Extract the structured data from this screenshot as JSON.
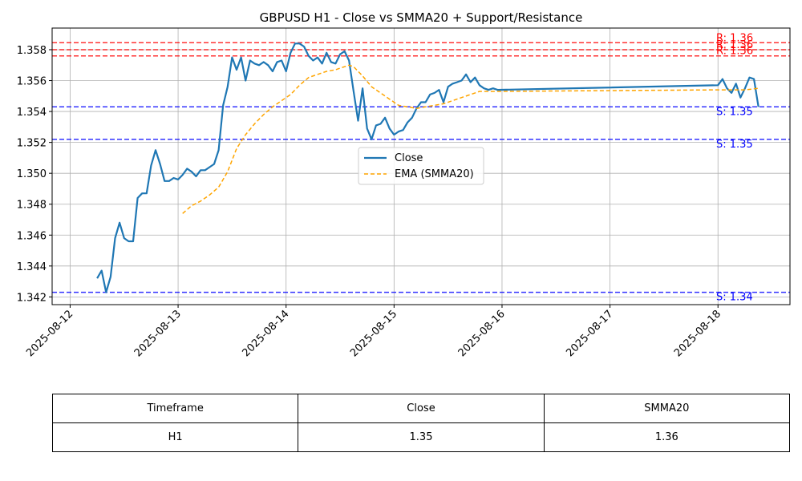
{
  "chart_data": {
    "type": "line",
    "title": "GBPUSD H1 - Close vs SMMA20 + Support/Resistance",
    "xlabel": "",
    "ylabel": "",
    "x_ticks": [
      "2025-08-12",
      "2025-08-13",
      "2025-08-14",
      "2025-08-15",
      "2025-08-16",
      "2025-08-17",
      "2025-08-18"
    ],
    "y_ticks": [
      "1.342",
      "1.344",
      "1.346",
      "1.348",
      "1.350",
      "1.352",
      "1.354",
      "1.356",
      "1.358"
    ],
    "ylim": [
      1.3415,
      1.3594
    ],
    "xlim": [
      "2025-08-11 20:00",
      "2025-08-18 16:00"
    ],
    "grid": true,
    "legend_position": "center-right",
    "series": [
      {
        "name": "Close",
        "color": "#1f77b4",
        "style": "solid",
        "points": [
          [
            "2025-08-12 06:00",
            1.3432
          ],
          [
            "2025-08-12 07:00",
            1.3437
          ],
          [
            "2025-08-12 08:00",
            1.3423
          ],
          [
            "2025-08-12 09:00",
            1.3433
          ],
          [
            "2025-08-12 10:00",
            1.3458
          ],
          [
            "2025-08-12 11:00",
            1.3468
          ],
          [
            "2025-08-12 12:00",
            1.3458
          ],
          [
            "2025-08-12 13:00",
            1.3456
          ],
          [
            "2025-08-12 14:00",
            1.3456
          ],
          [
            "2025-08-12 15:00",
            1.3484
          ],
          [
            "2025-08-12 16:00",
            1.3487
          ],
          [
            "2025-08-12 17:00",
            1.3487
          ],
          [
            "2025-08-12 18:00",
            1.3505
          ],
          [
            "2025-08-12 19:00",
            1.3515
          ],
          [
            "2025-08-12 20:00",
            1.3506
          ],
          [
            "2025-08-12 21:00",
            1.3495
          ],
          [
            "2025-08-12 22:00",
            1.3495
          ],
          [
            "2025-08-12 23:00",
            1.3497
          ],
          [
            "2025-08-13 00:00",
            1.3496
          ],
          [
            "2025-08-13 01:00",
            1.3499
          ],
          [
            "2025-08-13 02:00",
            1.3503
          ],
          [
            "2025-08-13 03:00",
            1.3501
          ],
          [
            "2025-08-13 04:00",
            1.3498
          ],
          [
            "2025-08-13 05:00",
            1.3502
          ],
          [
            "2025-08-13 06:00",
            1.3502
          ],
          [
            "2025-08-13 07:00",
            1.3504
          ],
          [
            "2025-08-13 08:00",
            1.3506
          ],
          [
            "2025-08-13 09:00",
            1.3515
          ],
          [
            "2025-08-13 10:00",
            1.3544
          ],
          [
            "2025-08-13 11:00",
            1.3556
          ],
          [
            "2025-08-13 12:00",
            1.3575
          ],
          [
            "2025-08-13 13:00",
            1.3567
          ],
          [
            "2025-08-13 14:00",
            1.3575
          ],
          [
            "2025-08-13 15:00",
            1.356
          ],
          [
            "2025-08-13 16:00",
            1.3573
          ],
          [
            "2025-08-13 17:00",
            1.3571
          ],
          [
            "2025-08-13 18:00",
            1.357
          ],
          [
            "2025-08-13 19:00",
            1.3572
          ],
          [
            "2025-08-13 20:00",
            1.357
          ],
          [
            "2025-08-13 21:00",
            1.3566
          ],
          [
            "2025-08-13 22:00",
            1.3572
          ],
          [
            "2025-08-13 23:00",
            1.3573
          ],
          [
            "2025-08-14 00:00",
            1.3566
          ],
          [
            "2025-08-14 01:00",
            1.3578
          ],
          [
            "2025-08-14 02:00",
            1.3584
          ],
          [
            "2025-08-14 03:00",
            1.3584
          ],
          [
            "2025-08-14 04:00",
            1.3582
          ],
          [
            "2025-08-14 05:00",
            1.3576
          ],
          [
            "2025-08-14 06:00",
            1.3573
          ],
          [
            "2025-08-14 07:00",
            1.3575
          ],
          [
            "2025-08-14 08:00",
            1.3571
          ],
          [
            "2025-08-14 09:00",
            1.3578
          ],
          [
            "2025-08-14 10:00",
            1.3572
          ],
          [
            "2025-08-14 11:00",
            1.3571
          ],
          [
            "2025-08-14 12:00",
            1.3577
          ],
          [
            "2025-08-14 13:00",
            1.3579
          ],
          [
            "2025-08-14 14:00",
            1.3573
          ],
          [
            "2025-08-14 15:00",
            1.3553
          ],
          [
            "2025-08-14 16:00",
            1.3534
          ],
          [
            "2025-08-14 17:00",
            1.3555
          ],
          [
            "2025-08-14 18:00",
            1.3529
          ],
          [
            "2025-08-14 19:00",
            1.3522
          ],
          [
            "2025-08-14 20:00",
            1.3531
          ],
          [
            "2025-08-14 21:00",
            1.3532
          ],
          [
            "2025-08-14 22:00",
            1.3536
          ],
          [
            "2025-08-14 23:00",
            1.3529
          ],
          [
            "2025-08-15 00:00",
            1.3525
          ],
          [
            "2025-08-15 01:00",
            1.3527
          ],
          [
            "2025-08-15 02:00",
            1.3528
          ],
          [
            "2025-08-15 03:00",
            1.3533
          ],
          [
            "2025-08-15 04:00",
            1.3536
          ],
          [
            "2025-08-15 05:00",
            1.3542
          ],
          [
            "2025-08-15 06:00",
            1.3546
          ],
          [
            "2025-08-15 07:00",
            1.3546
          ],
          [
            "2025-08-15 08:00",
            1.3551
          ],
          [
            "2025-08-15 09:00",
            1.3552
          ],
          [
            "2025-08-15 10:00",
            1.3554
          ],
          [
            "2025-08-15 11:00",
            1.3546
          ],
          [
            "2025-08-15 12:00",
            1.3556
          ],
          [
            "2025-08-15 13:00",
            1.3558
          ],
          [
            "2025-08-15 14:00",
            1.3559
          ],
          [
            "2025-08-15 15:00",
            1.356
          ],
          [
            "2025-08-15 16:00",
            1.3564
          ],
          [
            "2025-08-15 17:00",
            1.3559
          ],
          [
            "2025-08-15 18:00",
            1.3562
          ],
          [
            "2025-08-15 19:00",
            1.3557
          ],
          [
            "2025-08-15 20:00",
            1.3555
          ],
          [
            "2025-08-15 21:00",
            1.3554
          ],
          [
            "2025-08-15 22:00",
            1.3555
          ],
          [
            "2025-08-15 23:00",
            1.3554
          ],
          [
            "2025-08-18 00:00",
            1.3557
          ],
          [
            "2025-08-18 01:00",
            1.3561
          ],
          [
            "2025-08-18 02:00",
            1.3555
          ],
          [
            "2025-08-18 03:00",
            1.3552
          ],
          [
            "2025-08-18 04:00",
            1.3558
          ],
          [
            "2025-08-18 05:00",
            1.3549
          ],
          [
            "2025-08-18 06:00",
            1.3555
          ],
          [
            "2025-08-18 07:00",
            1.3562
          ],
          [
            "2025-08-18 08:00",
            1.3561
          ],
          [
            "2025-08-18 09:00",
            1.3543
          ]
        ]
      },
      {
        "name": "EMA (SMMA20)",
        "color": "#ffa500",
        "style": "dashed",
        "points": [
          [
            "2025-08-13 01:00",
            1.3474
          ],
          [
            "2025-08-13 03:00",
            1.3479
          ],
          [
            "2025-08-13 05:00",
            1.3482
          ],
          [
            "2025-08-13 07:00",
            1.3486
          ],
          [
            "2025-08-13 09:00",
            1.3491
          ],
          [
            "2025-08-13 11:00",
            1.3501
          ],
          [
            "2025-08-13 13:00",
            1.3516
          ],
          [
            "2025-08-13 15:00",
            1.3525
          ],
          [
            "2025-08-13 17:00",
            1.3532
          ],
          [
            "2025-08-13 19:00",
            1.3538
          ],
          [
            "2025-08-13 21:00",
            1.3543
          ],
          [
            "2025-08-13 23:00",
            1.3547
          ],
          [
            "2025-08-14 01:00",
            1.3551
          ],
          [
            "2025-08-14 03:00",
            1.3557
          ],
          [
            "2025-08-14 05:00",
            1.3562
          ],
          [
            "2025-08-14 07:00",
            1.3564
          ],
          [
            "2025-08-14 09:00",
            1.3566
          ],
          [
            "2025-08-14 11:00",
            1.3567
          ],
          [
            "2025-08-14 13:00",
            1.3569
          ],
          [
            "2025-08-14 14:00",
            1.357
          ],
          [
            "2025-08-14 15:00",
            1.3569
          ],
          [
            "2025-08-14 17:00",
            1.3563
          ],
          [
            "2025-08-14 19:00",
            1.3556
          ],
          [
            "2025-08-14 21:00",
            1.3552
          ],
          [
            "2025-08-14 23:00",
            1.3548
          ],
          [
            "2025-08-15 01:00",
            1.3544
          ],
          [
            "2025-08-15 03:00",
            1.3543
          ],
          [
            "2025-08-15 05:00",
            1.3542
          ],
          [
            "2025-08-15 07:00",
            1.3543
          ],
          [
            "2025-08-15 09:00",
            1.3544
          ],
          [
            "2025-08-15 11:00",
            1.3545
          ],
          [
            "2025-08-15 13:00",
            1.3547
          ],
          [
            "2025-08-15 15:00",
            1.3549
          ],
          [
            "2025-08-15 17:00",
            1.3551
          ],
          [
            "2025-08-15 19:00",
            1.3553
          ],
          [
            "2025-08-15 21:00",
            1.3553
          ],
          [
            "2025-08-15 23:00",
            1.3553
          ],
          [
            "2025-08-18 00:00",
            1.3554
          ],
          [
            "2025-08-18 03:00",
            1.3554
          ],
          [
            "2025-08-18 06:00",
            1.3554
          ],
          [
            "2025-08-18 09:00",
            1.3555
          ]
        ]
      }
    ],
    "levels": [
      {
        "kind": "resistance",
        "label": "R: 1.36",
        "value": 1.35845,
        "color": "#ff0000"
      },
      {
        "kind": "resistance",
        "label": "R: 1.36",
        "value": 1.358,
        "color": "#ff0000"
      },
      {
        "kind": "resistance",
        "label": "R: 1.36",
        "value": 1.3576,
        "color": "#ff0000"
      },
      {
        "kind": "support",
        "label": "S: 1.35",
        "value": 1.3543,
        "color": "#0000ff"
      },
      {
        "kind": "support",
        "label": "S: 1.35",
        "value": 1.3522,
        "color": "#0000ff"
      },
      {
        "kind": "support",
        "label": "S: 1.34",
        "value": 1.3423,
        "color": "#0000ff"
      }
    ]
  },
  "table": {
    "headers": [
      "Timeframe",
      "Close",
      "SMMA20"
    ],
    "row": [
      "H1",
      "1.35",
      "1.36"
    ]
  }
}
